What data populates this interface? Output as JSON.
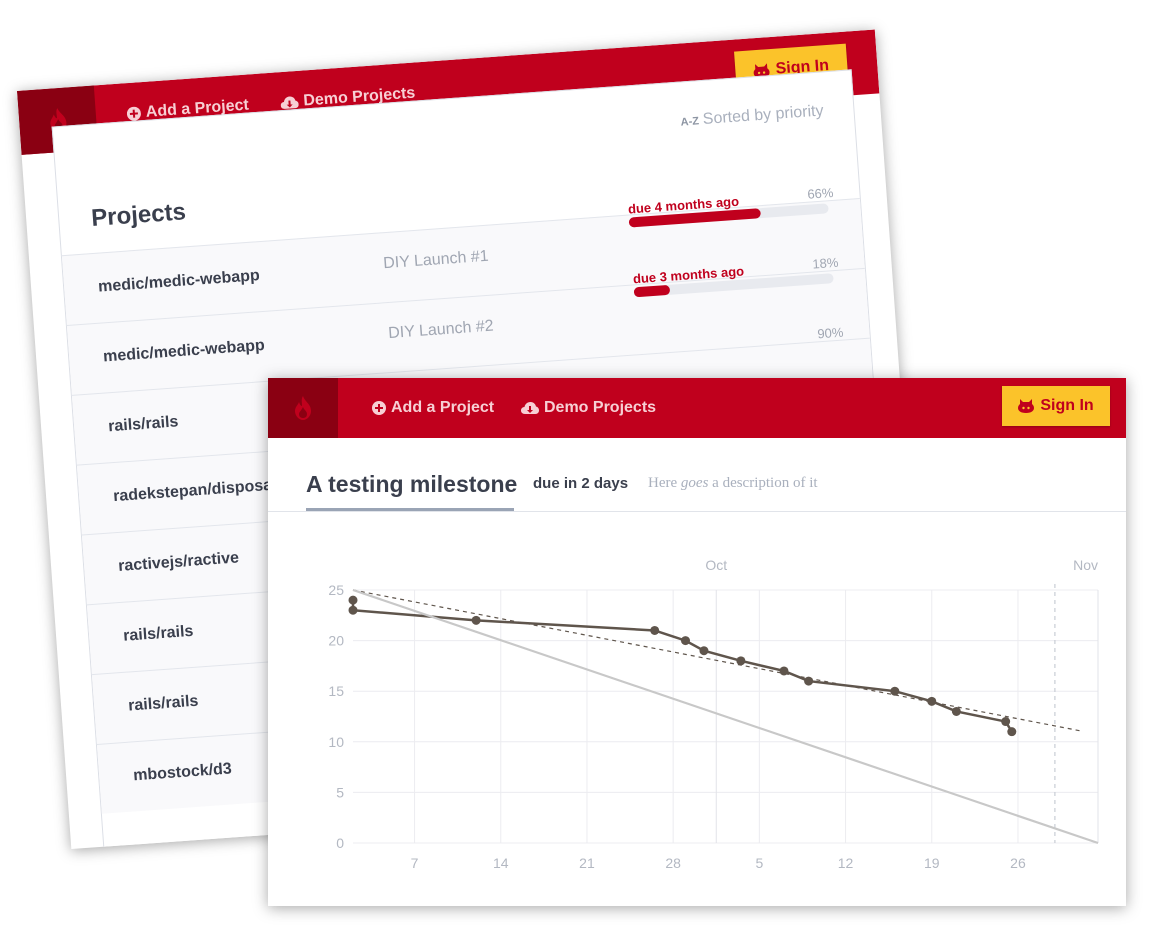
{
  "brand_color": "#c0001d",
  "logo_icon": "flame-icon",
  "back_panel": {
    "nav": {
      "add_project": "Add a Project",
      "demo_projects": "Demo Projects",
      "sign_in": "Sign In"
    },
    "sort": {
      "prefix": "A-Z",
      "label": "Sorted by priority"
    },
    "title": "Projects",
    "projects": [
      {
        "name": "medic/medic-webapp",
        "milestone": "DIY Launch #1",
        "due": "due 4 months ago",
        "percent_label": "66%",
        "progress": 0.66
      },
      {
        "name": "medic/medic-webapp",
        "milestone": "DIY Launch #2",
        "due": "due 3 months ago",
        "percent_label": "18%",
        "progress": 0.18
      },
      {
        "name": "rails/rails",
        "milestone": "",
        "due": "",
        "percent_label": "90%",
        "progress": 0.9
      },
      {
        "name": "radekstepan/disposable",
        "milestone": "",
        "due": "",
        "percent_label": "",
        "progress": null
      },
      {
        "name": "ractivejs/ractive",
        "milestone": "",
        "due": "",
        "percent_label": "",
        "progress": null
      },
      {
        "name": "rails/rails",
        "milestone": "",
        "due": "",
        "percent_label": "",
        "progress": null
      },
      {
        "name": "rails/rails",
        "milestone": "",
        "due": "",
        "percent_label": "",
        "progress": null
      },
      {
        "name": "mbostock/d3",
        "milestone": "",
        "due": "",
        "percent_label": "",
        "progress": null
      }
    ]
  },
  "front_panel": {
    "nav": {
      "add_project": "Add a Project",
      "demo_projects": "Demo Projects",
      "sign_in": "Sign In"
    },
    "milestone_title": "A testing milestone",
    "milestone_due": "due in 2 days",
    "description_pre": "Here ",
    "description_em": "goes",
    "description_post": " a description of it"
  },
  "chart_data": {
    "type": "line",
    "x_tick_labels": [
      "7",
      "14",
      "21",
      "28",
      "5",
      "12",
      "19",
      "26"
    ],
    "month_labels": [
      "Oct",
      "Nov"
    ],
    "y_ticks": [
      0,
      5,
      10,
      15,
      20,
      25
    ],
    "ylim": [
      0,
      25
    ],
    "xlim_days": [
      0,
      60.5
    ],
    "today_marker_day": 57,
    "series": [
      {
        "role": "actual",
        "color": "#5f554c",
        "points": [
          [
            0,
            24
          ],
          [
            0,
            23
          ],
          [
            10,
            22
          ],
          [
            24.5,
            21
          ],
          [
            27,
            20
          ],
          [
            28.5,
            19
          ],
          [
            31.5,
            18
          ],
          [
            35,
            17
          ],
          [
            37,
            16
          ],
          [
            44,
            15
          ],
          [
            47,
            14
          ],
          [
            49,
            13
          ],
          [
            53,
            12
          ],
          [
            53.5,
            11
          ]
        ]
      },
      {
        "role": "trend",
        "color": "#5f554c",
        "dashed": true,
        "points": [
          [
            0,
            25
          ],
          [
            59,
            11.1
          ]
        ]
      },
      {
        "role": "ideal",
        "color": "#c8c8c8",
        "points": [
          [
            0,
            25
          ],
          [
            60.5,
            0
          ]
        ]
      }
    ]
  }
}
